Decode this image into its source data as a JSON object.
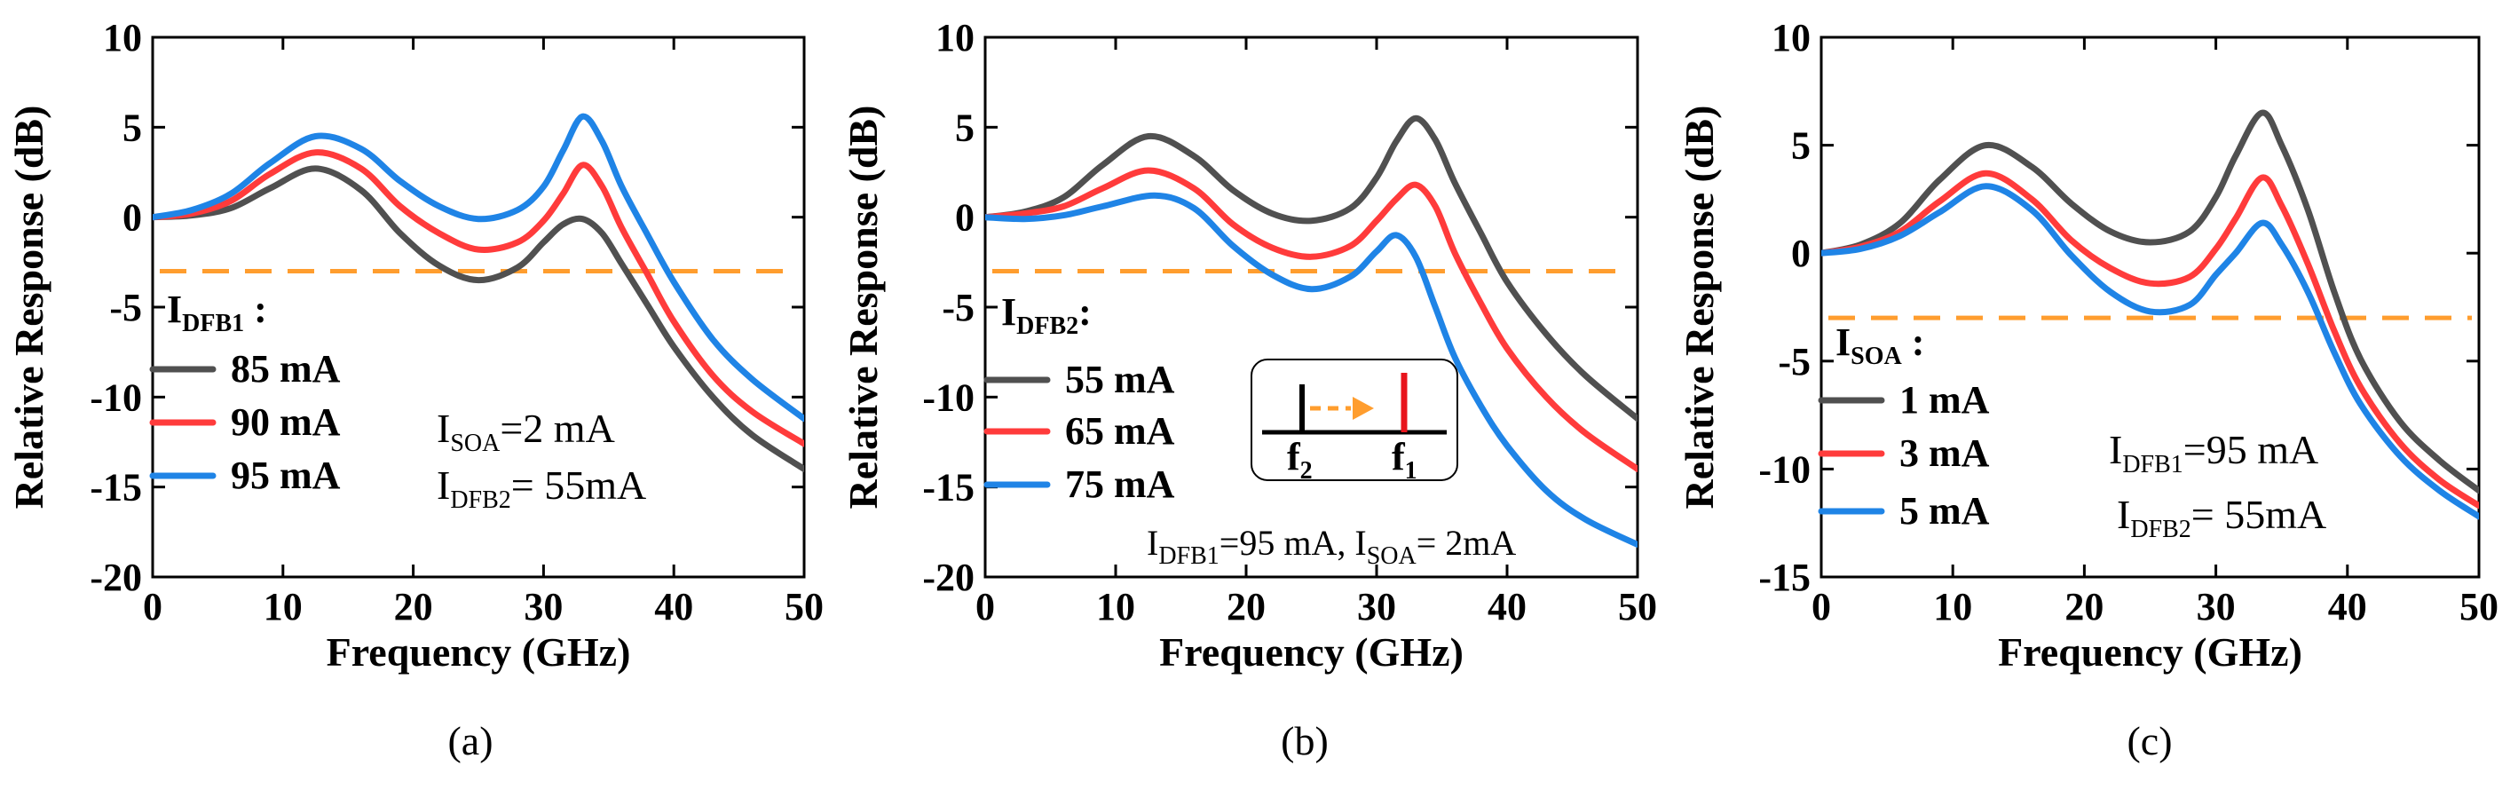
{
  "colors": {
    "dark": "#505050",
    "red": "#ff3b3b",
    "blue": "#1f84e6",
    "orange": "#ff9d2e",
    "insetRed": "#e8141c"
  },
  "chart_data": [
    {
      "type": "line",
      "panel": "a",
      "caption": "(a)",
      "xlabel": "Frequency (GHz)",
      "ylabel": "Relative Response (dB)",
      "xlim": [
        0,
        50
      ],
      "ylim": [
        -20,
        10
      ],
      "xticks": [
        0,
        10,
        20,
        30,
        40,
        50
      ],
      "yticks": [
        10,
        5,
        0,
        -5,
        -10,
        -15,
        -20
      ],
      "reference_line": {
        "y": -3,
        "style": "dashed",
        "color": "#ff9d2e"
      },
      "legend": {
        "title_main": "I",
        "title_sub": "DFB1",
        "title_suffix": " :"
      },
      "annotations": [
        {
          "main": "I",
          "sub": "SOA",
          "rest": "=2 mA"
        },
        {
          "main": "I",
          "sub": "DFB2",
          "rest": "= 55mA"
        }
      ],
      "series": [
        {
          "name": "85 mA",
          "color": "#505050",
          "x": [
            0,
            3,
            6,
            9,
            12.5,
            16,
            19,
            22,
            25,
            28,
            30,
            31.5,
            33,
            34.5,
            36,
            38,
            40,
            43,
            46,
            50
          ],
          "y": [
            0,
            0.1,
            0.5,
            1.6,
            2.7,
            1.5,
            -0.9,
            -2.7,
            -3.5,
            -2.8,
            -1.4,
            -0.4,
            -0.1,
            -0.9,
            -2.6,
            -4.9,
            -7.2,
            -10.0,
            -12.1,
            -14.0
          ]
        },
        {
          "name": "90  mA",
          "color": "#ff3b3b",
          "x": [
            0,
            3,
            6,
            9,
            12.5,
            16,
            19,
            22,
            25,
            28,
            30,
            31.5,
            33,
            34.5,
            36,
            38,
            40,
            43,
            46,
            50
          ],
          "y": [
            0,
            0.2,
            0.9,
            2.4,
            3.6,
            2.7,
            0.6,
            -0.9,
            -1.8,
            -1.4,
            -0.2,
            1.3,
            2.9,
            1.7,
            -0.6,
            -3.2,
            -5.8,
            -8.8,
            -10.8,
            -12.6
          ]
        },
        {
          "name": "95 mA",
          "color": "#1f84e6",
          "x": [
            0,
            3,
            6,
            9,
            12.5,
            16,
            19,
            22,
            25,
            28,
            30,
            31.5,
            33,
            34.5,
            36,
            38,
            40,
            43,
            46,
            50
          ],
          "y": [
            0,
            0.4,
            1.3,
            3.0,
            4.5,
            3.8,
            2.0,
            0.6,
            -0.1,
            0.4,
            1.7,
            3.7,
            5.6,
            4.2,
            1.7,
            -1.0,
            -3.6,
            -6.8,
            -9.0,
            -11.2
          ]
        }
      ]
    },
    {
      "type": "line",
      "panel": "b",
      "caption": "(b)",
      "xlabel": "Frequency (GHz)",
      "ylabel": "Relative Response (dB)",
      "xlim": [
        0,
        50
      ],
      "ylim": [
        -20,
        10
      ],
      "xticks": [
        0,
        10,
        20,
        30,
        40,
        50
      ],
      "yticks": [
        10,
        5,
        0,
        -5,
        -10,
        -15,
        -20
      ],
      "reference_line": {
        "y": -3,
        "style": "dashed",
        "color": "#ff9d2e"
      },
      "legend": {
        "title_main": "I",
        "title_sub": "DFB2",
        "title_suffix": ":"
      },
      "annotations": [
        {
          "main": "I",
          "sub": "DFB1",
          "rest": "=95 mA, ",
          "main2": "I",
          "sub2": "SOA",
          "rest2": "= 2mA"
        }
      ],
      "inset": {
        "labels": [
          "f",
          "f"
        ],
        "subs": [
          "2",
          "1"
        ]
      },
      "series": [
        {
          "name": "55 mA",
          "color": "#505050",
          "x": [
            0,
            3,
            6,
            9,
            12.5,
            16,
            19,
            22,
            25,
            28,
            30,
            31.5,
            33,
            34.5,
            36,
            38,
            40,
            43,
            46,
            50
          ],
          "y": [
            0,
            0.3,
            1.1,
            2.9,
            4.5,
            3.4,
            1.5,
            0.2,
            -0.2,
            0.5,
            2.2,
            4.2,
            5.5,
            4.3,
            1.9,
            -0.9,
            -3.6,
            -6.5,
            -8.8,
            -11.2
          ]
        },
        {
          "name": "65 mA",
          "color": "#ff3b3b",
          "x": [
            0,
            3,
            6,
            9,
            12.5,
            16,
            19,
            22,
            25,
            28,
            30,
            31.5,
            33,
            34.5,
            36,
            38,
            40,
            43,
            46,
            50
          ],
          "y": [
            0,
            0.2,
            0.6,
            1.6,
            2.6,
            1.6,
            -0.4,
            -1.7,
            -2.2,
            -1.6,
            -0.2,
            1.0,
            1.8,
            0.6,
            -2.0,
            -4.8,
            -7.3,
            -10.0,
            -12.0,
            -14.0
          ]
        },
        {
          "name": "75 mA",
          "color": "#1f84e6",
          "x": [
            0,
            3,
            6,
            9,
            13,
            16,
            19,
            22,
            25,
            28,
            30,
            31.5,
            33,
            34.5,
            36,
            38,
            40,
            43,
            46,
            50
          ],
          "y": [
            0,
            -0.1,
            0.1,
            0.6,
            1.2,
            0.5,
            -1.6,
            -3.2,
            -4.0,
            -3.3,
            -1.9,
            -1.0,
            -2.2,
            -5.0,
            -7.8,
            -10.5,
            -12.7,
            -15.2,
            -16.8,
            -18.2
          ]
        }
      ]
    },
    {
      "type": "line",
      "panel": "c",
      "caption": "(c)",
      "xlabel": "Frequency (GHz)",
      "ylabel": "Relative Response (dB)",
      "xlim": [
        0,
        50
      ],
      "ylim": [
        -15,
        10
      ],
      "xticks": [
        0,
        10,
        20,
        30,
        40,
        50
      ],
      "yticks": [
        10,
        5,
        0,
        -5,
        -10,
        -15
      ],
      "reference_line": {
        "y": -3,
        "style": "dashed",
        "color": "#ff9d2e"
      },
      "legend": {
        "title_main": "I",
        "title_sub": "SOA",
        "title_suffix": " :"
      },
      "annotations": [
        {
          "main": "I",
          "sub": "DFB1",
          "rest": "=95 mA"
        },
        {
          "main": "I",
          "sub": "DFB2",
          "rest": "= 55mA"
        }
      ],
      "series": [
        {
          "name": "1 mA",
          "color": "#505050",
          "x": [
            0,
            3,
            6,
            9,
            12.5,
            16,
            19,
            22,
            25,
            28,
            30,
            31.5,
            33.5,
            35,
            37,
            39,
            41,
            44,
            47,
            50
          ],
          "y": [
            0,
            0.4,
            1.4,
            3.4,
            5.0,
            4.0,
            2.3,
            1.0,
            0.5,
            1.0,
            2.6,
            4.5,
            6.5,
            5.0,
            2.0,
            -1.8,
            -4.9,
            -7.8,
            -9.6,
            -11.0
          ]
        },
        {
          "name": "3 mA",
          "color": "#ff3b3b",
          "x": [
            0,
            3,
            6,
            9,
            12.5,
            16,
            19,
            22,
            25,
            28,
            30,
            31.5,
            33.5,
            35,
            37,
            39,
            41,
            44,
            47,
            50
          ],
          "y": [
            0,
            0.3,
            1.0,
            2.4,
            3.7,
            2.5,
            0.6,
            -0.7,
            -1.4,
            -1.1,
            0.2,
            1.6,
            3.5,
            2.2,
            -0.5,
            -3.6,
            -6.2,
            -8.8,
            -10.5,
            -11.7
          ]
        },
        {
          "name": "5 mA",
          "color": "#1f84e6",
          "x": [
            0,
            3,
            6,
            9,
            12.5,
            16,
            19,
            22,
            25,
            28,
            30,
            31.5,
            33.5,
            35,
            37,
            39,
            41,
            44,
            47,
            50
          ],
          "y": [
            0,
            0.2,
            0.8,
            1.9,
            3.1,
            2.0,
            -0.1,
            -1.8,
            -2.7,
            -2.4,
            -1.0,
            0.0,
            1.4,
            0.4,
            -1.8,
            -4.6,
            -7.0,
            -9.4,
            -11.0,
            -12.2
          ]
        }
      ]
    }
  ]
}
